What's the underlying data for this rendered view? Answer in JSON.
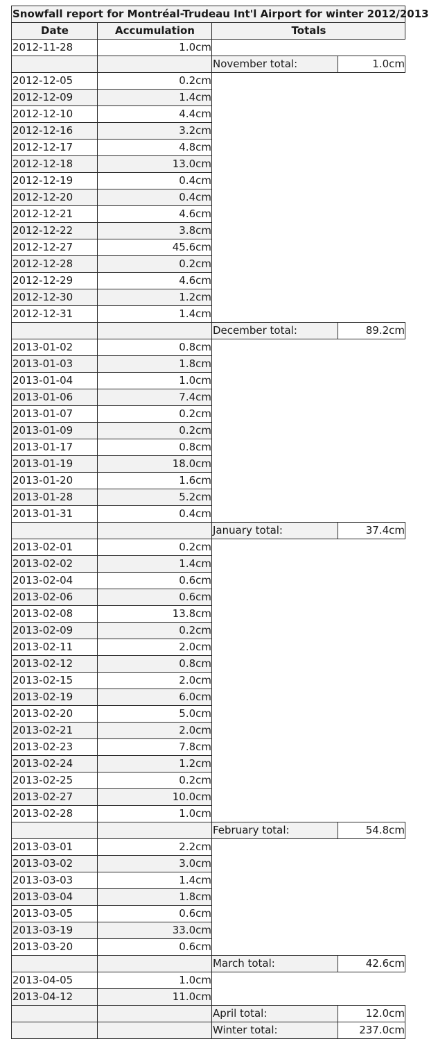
{
  "title": "Snowfall report for Montréal-Trudeau Int'l Airport for winter 2012/2013",
  "headers": {
    "date": "Date",
    "accumulation": "Accumulation",
    "totals": "Totals"
  },
  "rows": [
    {
      "date": "2012-11-28",
      "amount": "1.0cm"
    },
    {
      "total_label": "November total:",
      "total": "1.0cm"
    },
    {
      "date": "2012-12-05",
      "amount": "0.2cm"
    },
    {
      "date": "2012-12-09",
      "amount": "1.4cm"
    },
    {
      "date": "2012-12-10",
      "amount": "4.4cm"
    },
    {
      "date": "2012-12-16",
      "amount": "3.2cm"
    },
    {
      "date": "2012-12-17",
      "amount": "4.8cm"
    },
    {
      "date": "2012-12-18",
      "amount": "13.0cm"
    },
    {
      "date": "2012-12-19",
      "amount": "0.4cm"
    },
    {
      "date": "2012-12-20",
      "amount": "0.4cm"
    },
    {
      "date": "2012-12-21",
      "amount": "4.6cm"
    },
    {
      "date": "2012-12-22",
      "amount": "3.8cm"
    },
    {
      "date": "2012-12-27",
      "amount": "45.6cm"
    },
    {
      "date": "2012-12-28",
      "amount": "0.2cm"
    },
    {
      "date": "2012-12-29",
      "amount": "4.6cm"
    },
    {
      "date": "2012-12-30",
      "amount": "1.2cm"
    },
    {
      "date": "2012-12-31",
      "amount": "1.4cm"
    },
    {
      "total_label": "December total:",
      "total": "89.2cm"
    },
    {
      "date": "2013-01-02",
      "amount": "0.8cm"
    },
    {
      "date": "2013-01-03",
      "amount": "1.8cm"
    },
    {
      "date": "2013-01-04",
      "amount": "1.0cm"
    },
    {
      "date": "2013-01-06",
      "amount": "7.4cm"
    },
    {
      "date": "2013-01-07",
      "amount": "0.2cm"
    },
    {
      "date": "2013-01-09",
      "amount": "0.2cm"
    },
    {
      "date": "2013-01-17",
      "amount": "0.8cm"
    },
    {
      "date": "2013-01-19",
      "amount": "18.0cm"
    },
    {
      "date": "2013-01-20",
      "amount": "1.6cm"
    },
    {
      "date": "2013-01-28",
      "amount": "5.2cm"
    },
    {
      "date": "2013-01-31",
      "amount": "0.4cm"
    },
    {
      "total_label": "January total:",
      "total": "37.4cm"
    },
    {
      "date": "2013-02-01",
      "amount": "0.2cm"
    },
    {
      "date": "2013-02-02",
      "amount": "1.4cm"
    },
    {
      "date": "2013-02-04",
      "amount": "0.6cm"
    },
    {
      "date": "2013-02-06",
      "amount": "0.6cm"
    },
    {
      "date": "2013-02-08",
      "amount": "13.8cm"
    },
    {
      "date": "2013-02-09",
      "amount": "0.2cm"
    },
    {
      "date": "2013-02-11",
      "amount": "2.0cm"
    },
    {
      "date": "2013-02-12",
      "amount": "0.8cm"
    },
    {
      "date": "2013-02-15",
      "amount": "2.0cm"
    },
    {
      "date": "2013-02-19",
      "amount": "6.0cm"
    },
    {
      "date": "2013-02-20",
      "amount": "5.0cm"
    },
    {
      "date": "2013-02-21",
      "amount": "2.0cm"
    },
    {
      "date": "2013-02-23",
      "amount": "7.8cm"
    },
    {
      "date": "2013-02-24",
      "amount": "1.2cm"
    },
    {
      "date": "2013-02-25",
      "amount": "0.2cm"
    },
    {
      "date": "2013-02-27",
      "amount": "10.0cm"
    },
    {
      "date": "2013-02-28",
      "amount": "1.0cm"
    },
    {
      "total_label": "February total:",
      "total": "54.8cm"
    },
    {
      "date": "2013-03-01",
      "amount": "2.2cm"
    },
    {
      "date": "2013-03-02",
      "amount": "3.0cm"
    },
    {
      "date": "2013-03-03",
      "amount": "1.4cm"
    },
    {
      "date": "2013-03-04",
      "amount": "1.8cm"
    },
    {
      "date": "2013-03-05",
      "amount": "0.6cm"
    },
    {
      "date": "2013-03-19",
      "amount": "33.0cm"
    },
    {
      "date": "2013-03-20",
      "amount": "0.6cm"
    },
    {
      "total_label": "March total:",
      "total": "42.6cm"
    },
    {
      "date": "2013-04-05",
      "amount": "1.0cm"
    },
    {
      "date": "2013-04-12",
      "amount": "11.0cm"
    },
    {
      "total_label": "April total:",
      "total": "12.0cm"
    },
    {
      "total_label": "Winter total:",
      "total": "237.0cm"
    }
  ]
}
